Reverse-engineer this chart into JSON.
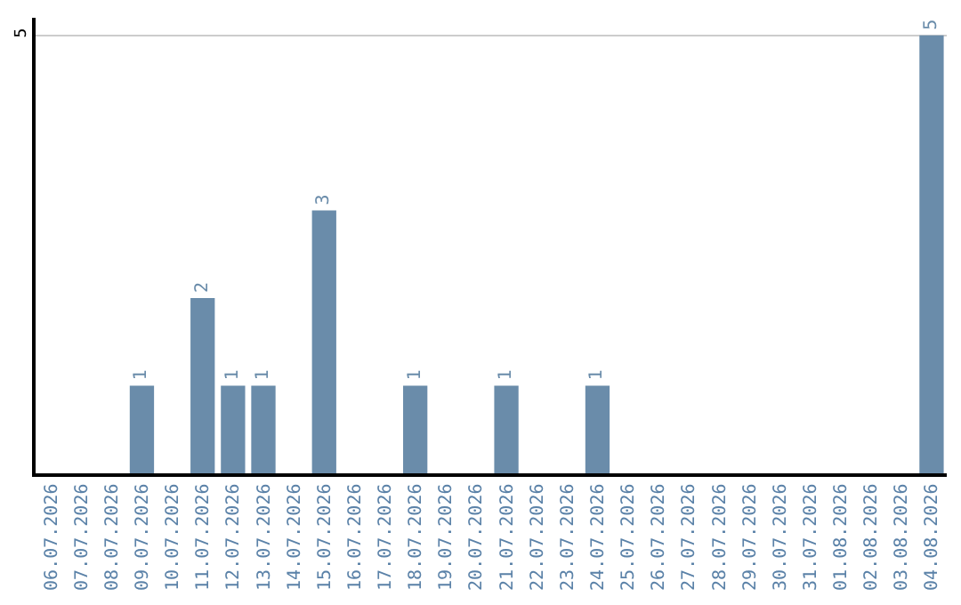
{
  "chart_data": {
    "type": "bar",
    "categories": [
      "06.07.2026",
      "07.07.2026",
      "08.07.2026",
      "09.07.2026",
      "10.07.2026",
      "11.07.2026",
      "12.07.2026",
      "13.07.2026",
      "14.07.2026",
      "15.07.2026",
      "16.07.2026",
      "17.07.2026",
      "18.07.2026",
      "19.07.2026",
      "20.07.2026",
      "21.07.2026",
      "22.07.2026",
      "23.07.2026",
      "24.07.2026",
      "25.07.2026",
      "26.07.2026",
      "27.07.2026",
      "28.07.2026",
      "29.07.2026",
      "30.07.2026",
      "31.07.2026",
      "01.08.2026",
      "02.08.2026",
      "03.08.2026",
      "04.08.2026"
    ],
    "values": [
      0,
      0,
      0,
      1,
      0,
      2,
      1,
      1,
      0,
      3,
      0,
      0,
      1,
      0,
      0,
      1,
      0,
      0,
      1,
      0,
      0,
      0,
      0,
      0,
      0,
      0,
      0,
      0,
      0,
      5
    ],
    "value_labels": [
      null,
      null,
      null,
      "1",
      null,
      "2",
      "1",
      "1",
      null,
      "3",
      null,
      null,
      "1",
      null,
      null,
      "1",
      null,
      null,
      "1",
      null,
      null,
      null,
      null,
      null,
      null,
      null,
      null,
      null,
      null,
      "5"
    ],
    "color": "#6a8caa",
    "ylim": [
      0,
      5.2
    ],
    "yticks": [
      5
    ],
    "grid": "y",
    "legend": false
  }
}
